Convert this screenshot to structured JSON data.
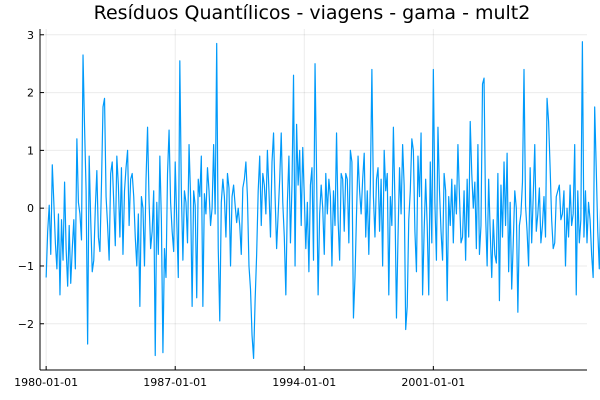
{
  "chart_data": {
    "type": "line",
    "title": "Resíduos Quantílicos - viagens - gama - mult2",
    "xlabel": "",
    "ylabel": "",
    "x_start": "1980-01-01",
    "x_frequency": "monthly",
    "xlim": [
      "1979-09-01",
      "2009-05-01"
    ],
    "ylim": [
      -2.8,
      3.1
    ],
    "x_ticks": [
      "1980-01-01",
      "1987-01-01",
      "1994-01-01",
      "2001-01-01"
    ],
    "y_ticks": [
      -2,
      -1,
      0,
      1,
      2,
      3
    ],
    "y_tick_labels": [
      "−2",
      "−1",
      "0",
      "1",
      "2",
      "3"
    ],
    "grid": true,
    "legend": "none",
    "series": [
      {
        "color": "#009AFA",
        "values": [
          -1.2,
          -0.4,
          0.05,
          -0.8,
          0.75,
          0.1,
          -0.6,
          -1.05,
          -0.1,
          -1.5,
          -0.2,
          -0.9,
          0.45,
          -0.7,
          -1.35,
          -0.3,
          -1.3,
          -0.7,
          -0.2,
          -1.05,
          1.2,
          0.1,
          -0.1,
          -0.55,
          2.65,
          1.4,
          0.3,
          -2.35,
          0.9,
          -0.2,
          -1.1,
          -0.9,
          0.0,
          0.65,
          -0.5,
          -0.75,
          0.4,
          1.75,
          1.9,
          0.2,
          -0.3,
          -0.9,
          0.6,
          0.8,
          0.1,
          -0.65,
          0.9,
          0.4,
          -0.5,
          0.7,
          -0.8,
          0.3,
          0.7,
          1.0,
          -0.3,
          0.5,
          0.6,
          0.2,
          -0.5,
          -1.0,
          -0.1,
          -1.7,
          0.2,
          0.0,
          -1.0,
          0.5,
          1.4,
          0.1,
          -0.7,
          -0.4,
          0.3,
          -2.55,
          0.1,
          -0.8,
          0.9,
          -0.2,
          -2.5,
          -0.7,
          -1.2,
          0.6,
          1.35,
          0.1,
          -0.4,
          -0.75,
          0.8,
          -0.2,
          -1.2,
          2.55,
          0.3,
          -0.9,
          0.3,
          0.1,
          -0.6,
          1.1,
          0.2,
          -1.7,
          0.3,
          0.05,
          -1.55,
          0.5,
          0.2,
          0.9,
          -1.7,
          0.25,
          -0.1,
          0.7,
          0.3,
          -0.3,
          0.0,
          1.1,
          -0.1,
          2.85,
          -0.7,
          -1.95,
          0.1,
          0.5,
          0.2,
          -0.5,
          0.6,
          0.35,
          -1.0,
          0.2,
          0.4,
          0.05,
          -0.25,
          0.0,
          -0.3,
          -0.8,
          0.35,
          0.5,
          0.8,
          0.2,
          -1.0,
          -1.4,
          -2.2,
          -2.6,
          -1.6,
          -0.8,
          0.3,
          0.9,
          -0.3,
          0.6,
          0.4,
          -0.1,
          1.0,
          0.3,
          -0.5,
          0.8,
          1.3,
          0.2,
          -0.7,
          -0.1,
          0.5,
          1.3,
          0.1,
          -0.5,
          -1.5,
          0.1,
          0.9,
          -0.6,
          0.4,
          2.3,
          -1.0,
          1.45,
          0.4,
          1.0,
          -0.3,
          1.05,
          0.2,
          -0.7,
          0.1,
          -1.1,
          0.4,
          0.7,
          -0.9,
          2.5,
          0.6,
          -1.5,
          -0.1,
          0.4,
          0.0,
          -0.8,
          0.6,
          -0.1,
          0.5,
          0.2,
          -1.0,
          0.3,
          -0.3,
          1.3,
          -0.2,
          -0.9,
          0.6,
          0.5,
          -0.4,
          0.6,
          0.5,
          -0.6,
          1.0,
          0.8,
          -1.9,
          -1.2,
          -0.1,
          0.9,
          0.3,
          -0.1,
          0.5,
          0.95,
          -0.5,
          0.3,
          -0.8,
          0.4,
          2.4,
          0.2,
          -0.5,
          0.5,
          0.7,
          -0.4,
          0.5,
          -1.0,
          1.0,
          0.3,
          0.6,
          -1.5,
          0.2,
          -0.3,
          1.4,
          0.1,
          -1.9,
          -0.5,
          0.7,
          -0.1,
          1.1,
          0.4,
          -2.1,
          -1.7,
          -0.2,
          0.3,
          1.2,
          1.0,
          -0.4,
          -1.1,
          0.9,
          0.2,
          1.3,
          -1.5,
          -0.4,
          0.5,
          -0.3,
          -1.5,
          0.8,
          -0.6,
          2.4,
          0.1,
          -0.9,
          1.4,
          0.3,
          -0.4,
          -0.9,
          0.6,
          0.3,
          -1.6,
          0.2,
          -0.3,
          0.5,
          -0.6,
          0.4,
          -0.1,
          1.1,
          0.2,
          -0.6,
          -0.5,
          0.3,
          -0.9,
          0.5,
          -0.5,
          1.5,
          0.6,
          0.0,
          0.45,
          -0.7,
          1.1,
          -0.8,
          -0.3,
          2.15,
          2.25,
          -0.1,
          -1.0,
          0.5,
          -0.4,
          -1.2,
          -0.2,
          -0.8,
          -0.95,
          0.6,
          -1.6,
          0.4,
          -0.5,
          0.8,
          -0.3,
          0.95,
          -1.1,
          0.1,
          -1.4,
          -0.6,
          0.3,
          0.0,
          -1.8,
          -0.3,
          -0.1,
          0.45,
          2.4,
          0.05,
          -0.4,
          -1.0,
          0.7,
          -0.6,
          0.2,
          1.1,
          -0.4,
          -0.1,
          0.35,
          -0.6,
          -0.3,
          0.2,
          -0.5,
          1.9,
          1.5,
          0.7,
          -0.2,
          -0.7,
          -0.6,
          0.2,
          0.3,
          0.4,
          -0.2,
          -0.1,
          0.3,
          -1.0,
          0.0,
          -0.5,
          0.4,
          -0.3,
          -0.1,
          1.1,
          -1.5,
          0.3,
          -0.6,
          -0.2,
          2.88,
          -0.5,
          0.3,
          -0.6,
          0.1,
          -0.2,
          -0.8,
          -1.2,
          1.75,
          0.7,
          -0.4,
          -1.05,
          0.2,
          -0.6,
          -0.4,
          -0.5,
          0.1,
          0.9,
          1.85,
          0.3,
          0.5,
          0.6
        ]
      }
    ]
  }
}
